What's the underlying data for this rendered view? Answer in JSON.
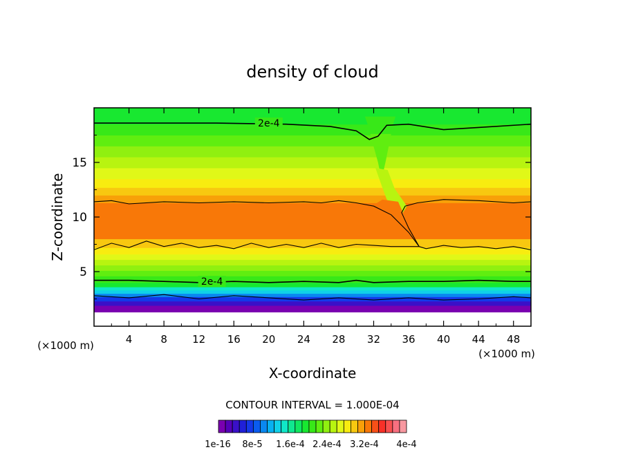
{
  "chart_data": {
    "type": "heatmap",
    "title": "density of cloud",
    "xlabel": "X-coordinate",
    "ylabel": "Z-coordinate",
    "x_unit": "(×1000 m)",
    "z_unit": "(×1000 m)",
    "xlim": [
      0,
      50
    ],
    "ylim": [
      0,
      20
    ],
    "x_ticks": [
      "4",
      "8",
      "12",
      "16",
      "20",
      "24",
      "28",
      "32",
      "36",
      "40",
      "44",
      "48"
    ],
    "y_ticks": [
      "5",
      "10",
      "15"
    ],
    "x_tick_values": [
      4,
      8,
      12,
      16,
      20,
      24,
      28,
      32,
      36,
      40,
      44,
      48
    ],
    "y_tick_values": [
      5,
      10,
      15
    ],
    "contour_interval_text": "CONTOUR INTERVAL = 1.000E-04",
    "contour_labels": [
      "2e-4",
      "2e-4"
    ],
    "colorbar": {
      "labels": [
        "1e-16",
        "8e-5",
        "1.6e-4",
        "2.4e-4",
        "3.2e-4",
        "4e-4"
      ],
      "colors": [
        "#7a00b0",
        "#5500b8",
        "#3a10c8",
        "#2020d8",
        "#1438e8",
        "#0a5cf0",
        "#0a88f0",
        "#08b0f0",
        "#10d0e8",
        "#10e8c8",
        "#10e890",
        "#10e860",
        "#18e830",
        "#38e818",
        "#60ee10",
        "#90f010",
        "#b8f410",
        "#e0f818",
        "#f8ec10",
        "#f8c810",
        "#f8a008",
        "#f87808",
        "#f85018",
        "#f83028",
        "#f85050",
        "#f87080",
        "#f898a0"
      ]
    },
    "bands": [
      {
        "z0": 0.0,
        "z1": 1.3,
        "color": "#ffffff"
      },
      {
        "z0": 1.3,
        "z1": 1.9,
        "color": "#7a00b0"
      },
      {
        "z0": 1.9,
        "z1": 2.3,
        "color": "#3a10c8"
      },
      {
        "z0": 2.3,
        "z1": 2.7,
        "color": "#1438e8"
      },
      {
        "z0": 2.7,
        "z1": 3.0,
        "color": "#0a88f0"
      },
      {
        "z0": 3.0,
        "z1": 3.3,
        "color": "#10d0e8"
      },
      {
        "z0": 3.3,
        "z1": 3.6,
        "color": "#10e8c8"
      },
      {
        "z0": 3.6,
        "z1": 4.0,
        "color": "#18e830"
      },
      {
        "z0": 4.0,
        "z1": 4.6,
        "color": "#38e818"
      },
      {
        "z0": 4.6,
        "z1": 5.1,
        "color": "#60ee10"
      },
      {
        "z0": 5.1,
        "z1": 5.6,
        "color": "#90f010"
      },
      {
        "z0": 5.6,
        "z1": 6.1,
        "color": "#b8f410"
      },
      {
        "z0": 6.1,
        "z1": 6.6,
        "color": "#e0f818"
      },
      {
        "z0": 6.6,
        "z1": 7.2,
        "color": "#f8ec10"
      },
      {
        "z0": 7.2,
        "z1": 8.0,
        "color": "#f8c810"
      },
      {
        "z0": 8.0,
        "z1": 11.3,
        "color": "#f87808"
      },
      {
        "z0": 11.3,
        "z1": 12.0,
        "color": "#f8a008"
      },
      {
        "z0": 12.0,
        "z1": 12.7,
        "color": "#f8c810"
      },
      {
        "z0": 12.7,
        "z1": 13.5,
        "color": "#f8ec10"
      },
      {
        "z0": 13.5,
        "z1": 14.5,
        "color": "#e0f818"
      },
      {
        "z0": 14.5,
        "z1": 15.5,
        "color": "#b8f410"
      },
      {
        "z0": 15.5,
        "z1": 16.5,
        "color": "#90f010"
      },
      {
        "z0": 16.5,
        "z1": 17.5,
        "color": "#60ee10"
      },
      {
        "z0": 17.5,
        "z1": 18.5,
        "color": "#38e818"
      },
      {
        "z0": 18.5,
        "z1": 20.0,
        "color": "#18e830"
      }
    ],
    "contours": [
      {
        "level": "2e-4",
        "points": [
          [
            0,
            18.6
          ],
          [
            14,
            18.6
          ],
          [
            22,
            18.5
          ],
          [
            27,
            18.3
          ],
          [
            30,
            17.9
          ],
          [
            31.5,
            17.1
          ],
          [
            32.5,
            17.4
          ],
          [
            33.5,
            18.4
          ],
          [
            36,
            18.5
          ],
          [
            40,
            18.0
          ],
          [
            44,
            18.2
          ],
          [
            50,
            18.5
          ]
        ]
      },
      {
        "level": "2e-4",
        "points": [
          [
            0,
            4.2
          ],
          [
            4,
            4.2
          ],
          [
            8,
            4.1
          ],
          [
            12,
            4.0
          ],
          [
            16,
            4.1
          ],
          [
            20,
            4.0
          ],
          [
            24,
            4.1
          ],
          [
            28,
            4.0
          ],
          [
            30,
            4.2
          ],
          [
            32,
            4.0
          ],
          [
            36,
            4.1
          ],
          [
            40,
            4.1
          ],
          [
            44,
            4.2
          ],
          [
            48,
            4.1
          ],
          [
            50,
            4.1
          ]
        ]
      },
      {
        "level": "",
        "points": [
          [
            0,
            11.4
          ],
          [
            2,
            11.5
          ],
          [
            4,
            11.2
          ],
          [
            8,
            11.4
          ],
          [
            12,
            11.3
          ],
          [
            16,
            11.4
          ],
          [
            20,
            11.3
          ],
          [
            24,
            11.4
          ],
          [
            26,
            11.3
          ],
          [
            28,
            11.5
          ],
          [
            30,
            11.3
          ],
          [
            32,
            11.0
          ],
          [
            34,
            10.2
          ],
          [
            36,
            8.6
          ],
          [
            37.2,
            7.3
          ]
        ]
      },
      {
        "level": "",
        "points": [
          [
            37.2,
            7.3
          ],
          [
            36.0,
            9.0
          ],
          [
            35.2,
            10.4
          ],
          [
            35.6,
            11.0
          ],
          [
            37,
            11.3
          ],
          [
            40,
            11.6
          ],
          [
            44,
            11.5
          ],
          [
            48,
            11.3
          ],
          [
            50,
            11.4
          ]
        ]
      },
      {
        "level": "",
        "points": [
          [
            0,
            7.0
          ],
          [
            2,
            7.6
          ],
          [
            4,
            7.2
          ],
          [
            6,
            7.8
          ],
          [
            8,
            7.3
          ],
          [
            10,
            7.6
          ],
          [
            12,
            7.2
          ],
          [
            14,
            7.4
          ],
          [
            16,
            7.1
          ],
          [
            18,
            7.6
          ],
          [
            20,
            7.2
          ],
          [
            22,
            7.5
          ],
          [
            24,
            7.2
          ],
          [
            26,
            7.6
          ],
          [
            28,
            7.2
          ],
          [
            30,
            7.5
          ],
          [
            32,
            7.4
          ],
          [
            34,
            7.3
          ],
          [
            36,
            7.3
          ],
          [
            37.2,
            7.3
          ],
          [
            38,
            7.1
          ],
          [
            40,
            7.4
          ],
          [
            42,
            7.2
          ],
          [
            44,
            7.3
          ],
          [
            46,
            7.1
          ],
          [
            48,
            7.3
          ],
          [
            50,
            7.0
          ]
        ]
      },
      {
        "level": "",
        "points": [
          [
            0,
            2.8
          ],
          [
            4,
            2.6
          ],
          [
            8,
            2.9
          ],
          [
            12,
            2.5
          ],
          [
            16,
            2.8
          ],
          [
            20,
            2.6
          ],
          [
            24,
            2.4
          ],
          [
            28,
            2.6
          ],
          [
            32,
            2.4
          ],
          [
            36,
            2.6
          ],
          [
            40,
            2.4
          ],
          [
            44,
            2.5
          ],
          [
            48,
            2.7
          ],
          [
            50,
            2.6
          ]
        ]
      }
    ],
    "plumes": [
      {
        "color": "#38e818",
        "points": [
          [
            31,
            19.2
          ],
          [
            32.3,
            16.2
          ],
          [
            32.8,
            14.3
          ],
          [
            33.4,
            16.4
          ],
          [
            34.5,
            19.2
          ]
        ]
      },
      {
        "color": "#60ee10",
        "points": [
          [
            31.6,
            17.6
          ],
          [
            32.5,
            15.0
          ],
          [
            32.9,
            13.4
          ],
          [
            33.4,
            15.2
          ],
          [
            34.0,
            17.6
          ]
        ]
      },
      {
        "color": "#b8f410",
        "points": [
          [
            32.2,
            14.5
          ],
          [
            32.9,
            12.9
          ],
          [
            33.5,
            11.6
          ],
          [
            35.2,
            10.2
          ],
          [
            35.8,
            11.0
          ],
          [
            34.4,
            12.6
          ],
          [
            33.6,
            14.3
          ]
        ]
      },
      {
        "color": "#f87808",
        "points": [
          [
            32,
            11.1
          ],
          [
            34,
            10.1
          ],
          [
            36,
            8.5
          ],
          [
            37.2,
            7.3
          ],
          [
            35.8,
            9.4
          ],
          [
            35.3,
            10.5
          ],
          [
            34.8,
            11.4
          ],
          [
            33.0,
            11.6
          ]
        ]
      }
    ]
  }
}
